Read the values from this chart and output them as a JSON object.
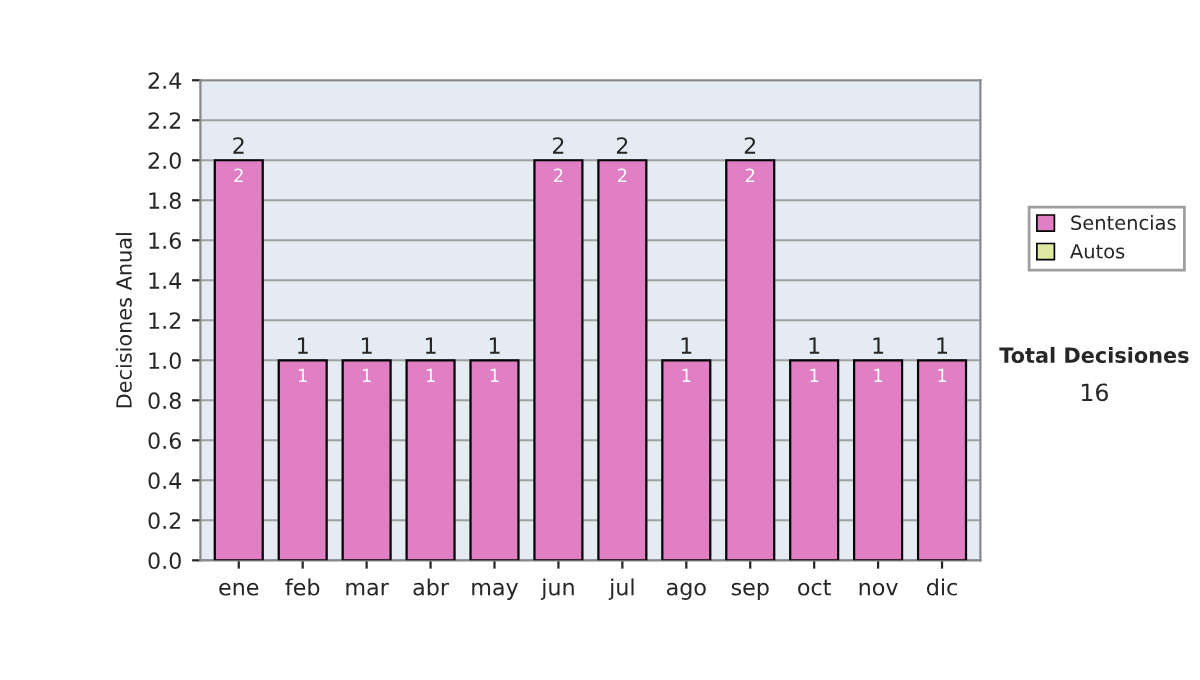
{
  "chart_data": {
    "type": "bar",
    "ylabel": "Decisiones Anual",
    "categories": [
      "ene",
      "feb",
      "mar",
      "abr",
      "may",
      "jun",
      "jul",
      "ago",
      "sep",
      "oct",
      "nov",
      "dic"
    ],
    "series": [
      {
        "name": "Sentencias",
        "color": "#e07fc4",
        "values": [
          2,
          1,
          1,
          1,
          1,
          2,
          2,
          1,
          2,
          1,
          1,
          1
        ]
      },
      {
        "name": "Autos",
        "color": "#dfe8a0",
        "values": [
          null,
          null,
          null,
          null,
          null,
          null,
          null,
          null,
          null,
          null,
          null,
          null
        ]
      }
    ],
    "stacked": true,
    "data_labels": true,
    "totals": [
      "2",
      "1",
      "1",
      "1",
      "1",
      "2",
      "2",
      "1",
      "2",
      "1",
      "1",
      "1"
    ],
    "ylim": [
      0,
      2.4
    ],
    "yticks": [
      {
        "value": 0,
        "label": "0.0"
      },
      {
        "value": 0.2,
        "label": "0.2"
      },
      {
        "value": 0.4,
        "label": "0.4"
      },
      {
        "value": 0.6,
        "label": "0.6"
      },
      {
        "value": 0.8,
        "label": "0.8"
      },
      {
        "value": 1,
        "label": "1.0"
      },
      {
        "value": 1.2,
        "label": "1.2"
      },
      {
        "value": 1.4,
        "label": "1.4"
      },
      {
        "value": 1.6,
        "label": "1.6"
      },
      {
        "value": 1.8,
        "label": "1.8"
      },
      {
        "value": 2,
        "label": "2.0"
      },
      {
        "value": 2.2,
        "label": "2.2"
      },
      {
        "value": 2.4,
        "label": "2.4"
      }
    ],
    "grid": "y",
    "legend": "right",
    "annotations": [
      "Total Decisiones",
      "16"
    ]
  }
}
